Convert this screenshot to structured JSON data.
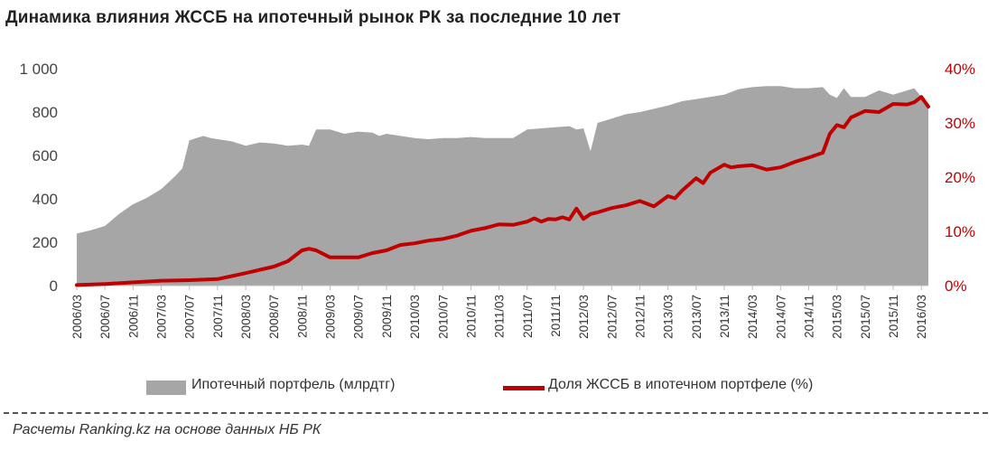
{
  "title": "Динамика влияния ЖССБ на ипотечный рынок РК за последние 10 лет",
  "legend": {
    "area_label": "Ипотечный портфель (млрдтг)",
    "line_label": "Доля ЖССБ в ипотечном портфеле (%)"
  },
  "source": "Расчеты Ranking.kz на основе данных НБ РК",
  "colors": {
    "area": "#a6a6a6",
    "line": "#c00000",
    "axis_left": "#444444",
    "axis_right": "#c00000"
  },
  "chart_data": {
    "type": "area",
    "left_axis": {
      "ylim": [
        0,
        1000
      ],
      "ticks": [
        0,
        200,
        400,
        600,
        800,
        1000
      ],
      "tick_labels": [
        "0",
        "200",
        "400",
        "600",
        "800",
        "1 000"
      ]
    },
    "right_axis": {
      "ylim": [
        0,
        40
      ],
      "ticks": [
        0,
        10,
        20,
        30,
        40
      ],
      "tick_labels": [
        "0%",
        "10%",
        "20%",
        "30%",
        "40%"
      ]
    },
    "x_tick_labels": [
      "2006/03",
      "2006/07",
      "2006/11",
      "2007/03",
      "2007/07",
      "2007/11",
      "2008/03",
      "2008/07",
      "2008/11",
      "2009/03",
      "2009/07",
      "2009/11",
      "2010/03",
      "2010/07",
      "2010/11",
      "2011/03",
      "2011/07",
      "2011/11",
      "2012/03",
      "2012/07",
      "2012/11",
      "2013/03",
      "2013/07",
      "2013/11",
      "2014/03",
      "2014/07",
      "2014/11",
      "2015/03",
      "2015/07",
      "2015/11",
      "2016/03"
    ],
    "grid": false,
    "legend_position": "bottom",
    "series": [
      {
        "chart_type": "area",
        "axis": "left",
        "x": [
          "2006/03",
          "2006/05",
          "2006/07",
          "2006/09",
          "2006/11",
          "2007/01",
          "2007/03",
          "2007/05",
          "2007/06",
          "2007/07",
          "2007/08",
          "2007/09",
          "2007/10",
          "2007/11",
          "2008/01",
          "2008/03",
          "2008/05",
          "2008/07",
          "2008/09",
          "2008/11",
          "2008/12",
          "2009/01",
          "2009/03",
          "2009/05",
          "2009/07",
          "2009/09",
          "2009/10",
          "2009/11",
          "2010/01",
          "2010/03",
          "2010/05",
          "2010/07",
          "2010/09",
          "2010/11",
          "2011/01",
          "2011/03",
          "2011/05",
          "2011/07",
          "2011/09",
          "2011/11",
          "2012/01",
          "2012/02",
          "2012/03",
          "2012/04",
          "2012/05",
          "2012/07",
          "2012/09",
          "2012/11",
          "2013/01",
          "2013/03",
          "2013/05",
          "2013/07",
          "2013/09",
          "2013/11",
          "2014/01",
          "2014/03",
          "2014/05",
          "2014/07",
          "2014/09",
          "2014/11",
          "2015/01",
          "2015/02",
          "2015/03",
          "2015/04",
          "2015/05",
          "2015/07",
          "2015/09",
          "2015/11",
          "2016/01",
          "2016/02",
          "2016/03",
          "2016/04"
        ],
        "values": [
          240,
          255,
          275,
          330,
          375,
          405,
          445,
          505,
          540,
          670,
          680,
          690,
          680,
          675,
          665,
          645,
          660,
          655,
          645,
          650,
          645,
          720,
          720,
          700,
          710,
          705,
          690,
          700,
          690,
          680,
          675,
          680,
          680,
          685,
          680,
          680,
          680,
          720,
          725,
          730,
          735,
          720,
          725,
          620,
          750,
          770,
          790,
          800,
          815,
          830,
          850,
          860,
          870,
          880,
          905,
          915,
          920,
          920,
          910,
          910,
          915,
          880,
          865,
          910,
          870,
          870,
          900,
          880,
          900,
          910,
          870,
          840
        ]
      },
      {
        "chart_type": "line",
        "axis": "right",
        "x": [
          "2006/03",
          "2006/07",
          "2006/11",
          "2007/03",
          "2007/07",
          "2007/11",
          "2008/03",
          "2008/07",
          "2008/09",
          "2008/11",
          "2008/12",
          "2009/01",
          "2009/03",
          "2009/07",
          "2009/09",
          "2009/11",
          "2010/01",
          "2010/03",
          "2010/05",
          "2010/07",
          "2010/09",
          "2010/11",
          "2011/01",
          "2011/03",
          "2011/05",
          "2011/07",
          "2011/08",
          "2011/09",
          "2011/10",
          "2011/11",
          "2011/12",
          "2012/01",
          "2012/02",
          "2012/03",
          "2012/04",
          "2012/05",
          "2012/07",
          "2012/09",
          "2012/11",
          "2013/01",
          "2013/03",
          "2013/04",
          "2013/05",
          "2013/07",
          "2013/08",
          "2013/09",
          "2013/11",
          "2013/12",
          "2014/01",
          "2014/03",
          "2014/05",
          "2014/07",
          "2014/09",
          "2014/11",
          "2015/01",
          "2015/02",
          "2015/03",
          "2015/04",
          "2015/05",
          "2015/07",
          "2015/09",
          "2015/11",
          "2016/01",
          "2016/02",
          "2016/03",
          "2016/04"
        ],
        "values": [
          0.1,
          0.3,
          0.6,
          0.9,
          1.0,
          1.2,
          2.3,
          3.5,
          4.5,
          6.5,
          6.8,
          6.5,
          5.2,
          5.2,
          6.0,
          6.5,
          7.5,
          7.8,
          8.3,
          8.6,
          9.2,
          10.1,
          10.6,
          11.3,
          11.2,
          11.8,
          12.4,
          11.8,
          12.3,
          12.2,
          12.6,
          12.2,
          14.2,
          12.3,
          13.2,
          13.5,
          14.3,
          14.8,
          15.6,
          14.6,
          16.5,
          16.1,
          17.5,
          19.8,
          18.9,
          20.8,
          22.3,
          21.8,
          22.0,
          22.2,
          21.4,
          21.8,
          22.8,
          23.6,
          24.5,
          28.0,
          29.6,
          29.2,
          31.0,
          32.2,
          32.0,
          33.5,
          33.4,
          33.8,
          34.8,
          33.0
        ]
      }
    ]
  }
}
